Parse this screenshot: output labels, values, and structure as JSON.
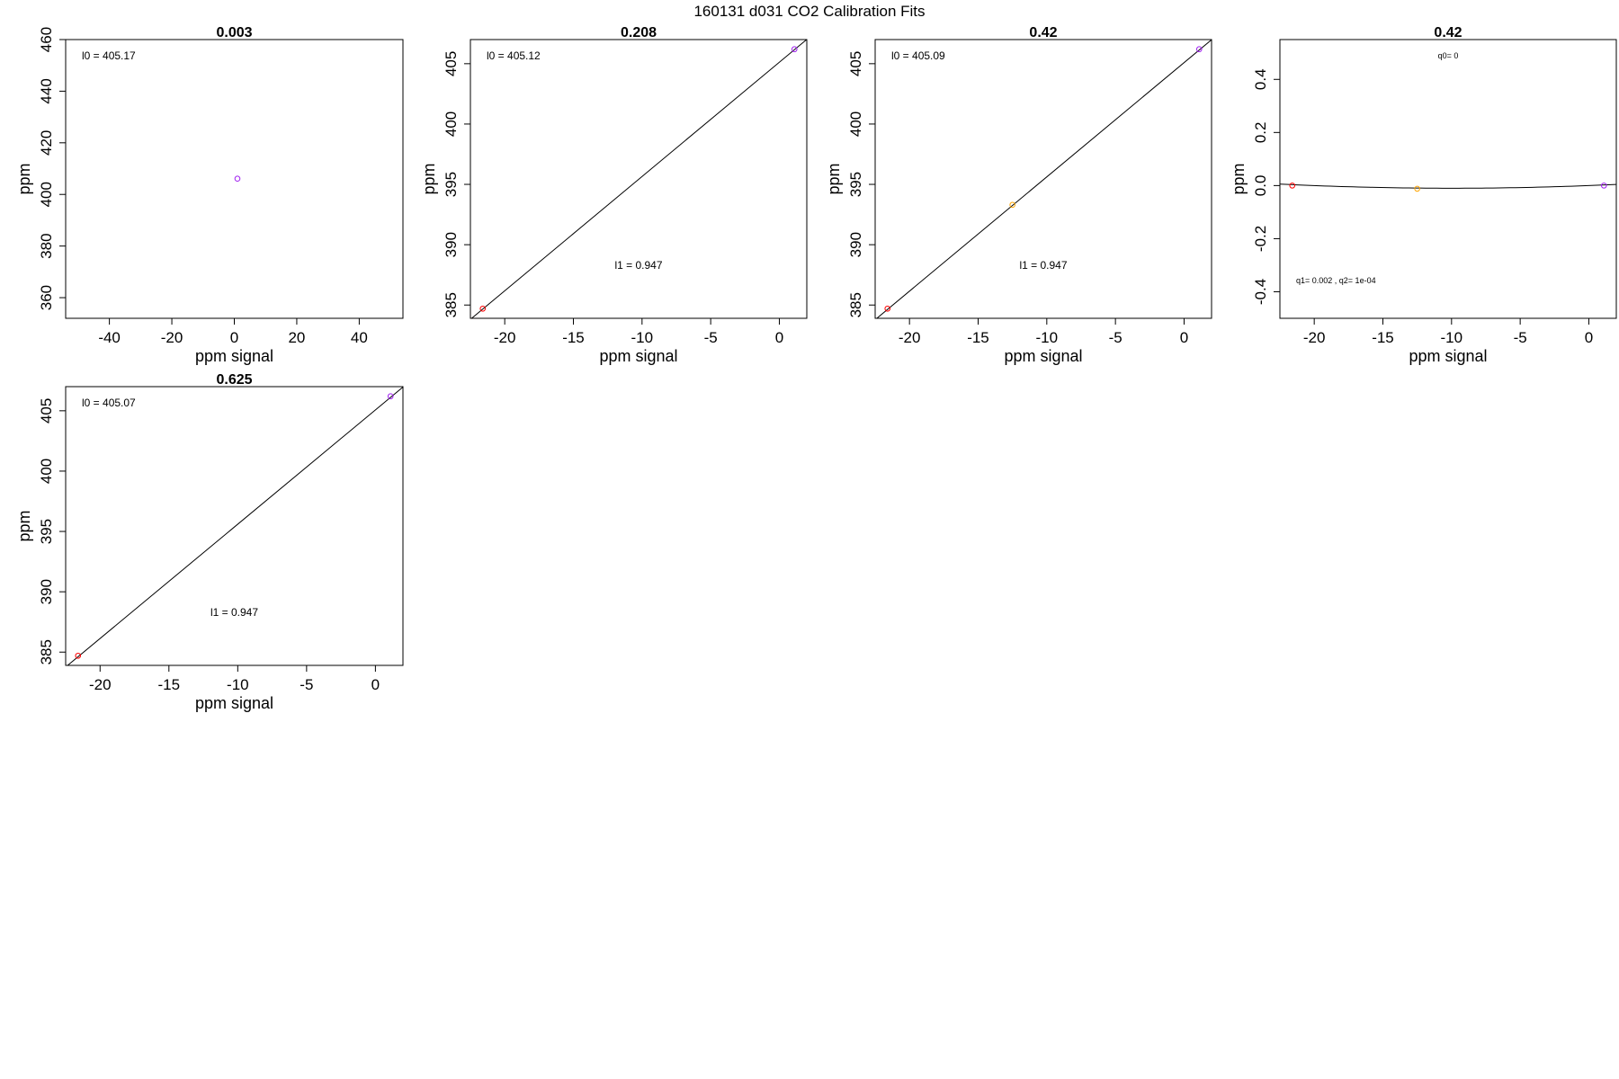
{
  "figure": {
    "title": "160131   d031   CO2 Calibration Fits"
  },
  "chart_data": [
    {
      "type": "scatter",
      "title": "0.003",
      "xlabel": "ppm signal",
      "ylabel": "ppm",
      "xlim": [
        -54,
        54
      ],
      "ylim": [
        352,
        460
      ],
      "xticks": [
        -40,
        -20,
        0,
        20,
        40
      ],
      "yticks": [
        360,
        380,
        400,
        420,
        440,
        460
      ],
      "points": [
        {
          "x": 1.0,
          "y": 406.1,
          "color": "#a020f0"
        }
      ],
      "fit": null,
      "annotations": [
        {
          "text": "l0 =  405.17",
          "pos": "top-left"
        }
      ]
    },
    {
      "type": "scatter",
      "title": "0.208",
      "xlabel": "ppm signal",
      "ylabel": "ppm",
      "xlim": [
        -22.5,
        2.0
      ],
      "ylim": [
        383.9,
        407.0
      ],
      "xticks": [
        -20,
        -15,
        -10,
        -5,
        0
      ],
      "yticks": [
        385,
        390,
        395,
        400,
        405
      ],
      "points": [
        {
          "x": -21.6,
          "y": 384.7,
          "color": "#ff0000"
        },
        {
          "x": 1.1,
          "y": 406.2,
          "color": "#a020f0"
        }
      ],
      "fit": {
        "kind": "linear",
        "intercept": 405.12,
        "slope": 0.947
      },
      "annotations": [
        {
          "text": "l0 =  405.12",
          "pos": "top-left"
        },
        {
          "text": "l1 =  0.947",
          "pos": "center-bottom"
        }
      ]
    },
    {
      "type": "scatter",
      "title": "0.42",
      "xlabel": "ppm signal",
      "ylabel": "ppm",
      "xlim": [
        -22.5,
        2.0
      ],
      "ylim": [
        383.9,
        407.0
      ],
      "xticks": [
        -20,
        -15,
        -10,
        -5,
        0
      ],
      "yticks": [
        385,
        390,
        395,
        400,
        405
      ],
      "points": [
        {
          "x": -21.6,
          "y": 384.7,
          "color": "#ff0000"
        },
        {
          "x": -12.5,
          "y": 393.3,
          "color": "#ffa500"
        },
        {
          "x": 1.1,
          "y": 406.2,
          "color": "#a020f0"
        }
      ],
      "fit": {
        "kind": "linear",
        "intercept": 405.09,
        "slope": 0.947
      },
      "annotations": [
        {
          "text": "l0 =  405.09",
          "pos": "top-left"
        },
        {
          "text": "l1 =  0.947",
          "pos": "center-bottom"
        }
      ]
    },
    {
      "type": "scatter",
      "title": "0.42",
      "xlabel": "ppm signal",
      "ylabel": "ppm",
      "xlim": [
        -22.5,
        2.0
      ],
      "ylim": [
        -0.5,
        0.55
      ],
      "xticks": [
        -20,
        -15,
        -10,
        -5,
        0
      ],
      "yticks": [
        -0.4,
        -0.2,
        0.0,
        0.2,
        0.4
      ],
      "ytick_labels": [
        "-0.4",
        "-0.2",
        "0.0",
        "0.2",
        "0.4"
      ],
      "points": [
        {
          "x": -21.6,
          "y": 0.0,
          "color": "#ff0000"
        },
        {
          "x": -12.5,
          "y": -0.012,
          "color": "#ffa500"
        },
        {
          "x": 1.1,
          "y": 0.0,
          "color": "#a020f0"
        }
      ],
      "fit": {
        "kind": "quadratic",
        "q0": 0,
        "q1": 0.002,
        "q2": 0.0001
      },
      "annotations": [
        {
          "text": "q0= 0",
          "pos": "top-center"
        },
        {
          "text": "q1= 0.002 , q2= 1e-04",
          "pos": "bottom-left"
        }
      ]
    },
    {
      "type": "scatter",
      "title": "0.625",
      "xlabel": "ppm signal",
      "ylabel": "ppm",
      "xlim": [
        -22.5,
        2.0
      ],
      "ylim": [
        383.9,
        407.0
      ],
      "xticks": [
        -20,
        -15,
        -10,
        -5,
        0
      ],
      "yticks": [
        385,
        390,
        395,
        400,
        405
      ],
      "points": [
        {
          "x": -21.6,
          "y": 384.7,
          "color": "#ff0000"
        },
        {
          "x": 1.1,
          "y": 406.2,
          "color": "#a020f0"
        }
      ],
      "fit": {
        "kind": "linear",
        "intercept": 405.07,
        "slope": 0.947
      },
      "annotations": [
        {
          "text": "l0 =  405.07",
          "pos": "top-left"
        },
        {
          "text": "l1 =  0.947",
          "pos": "center-bottom"
        }
      ]
    }
  ]
}
